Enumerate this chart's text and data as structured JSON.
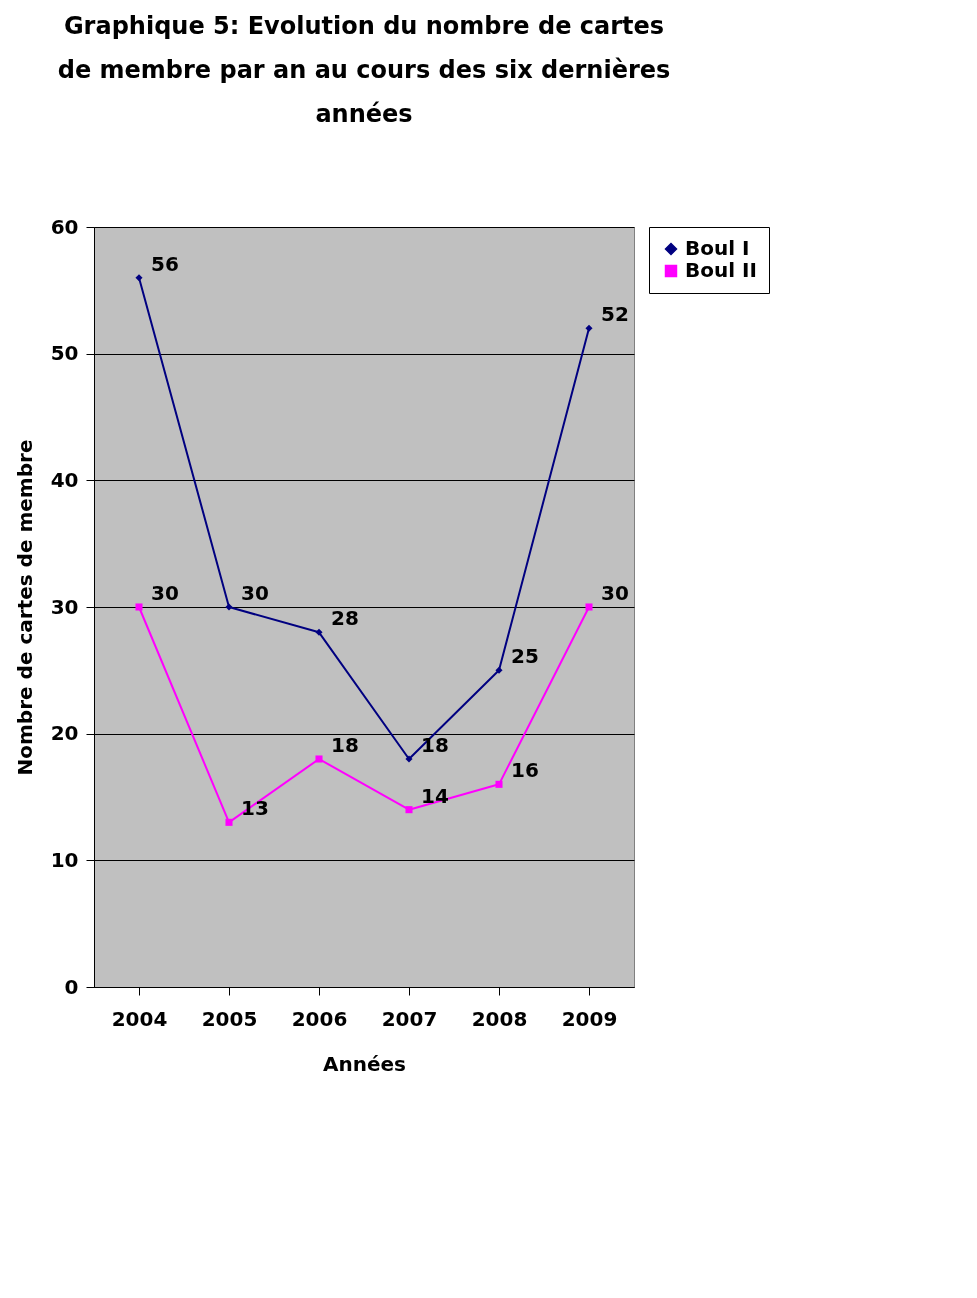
{
  "chart_data": {
    "type": "line",
    "title": "Graphique 5: Evolution du nombre de cartes de membre par an au cours des six dernières années",
    "xlabel": "Années",
    "ylabel": "Nombre de cartes de membre",
    "categories": [
      "2004",
      "2005",
      "2006",
      "2007",
      "2008",
      "2009"
    ],
    "series": [
      {
        "name": "Boul I",
        "color": "#000080",
        "marker": "diamond",
        "values": [
          56,
          30,
          28,
          18,
          25,
          52
        ]
      },
      {
        "name": "Boul II",
        "color": "#ff00ff",
        "marker": "square",
        "values": [
          30,
          13,
          18,
          14,
          16,
          30
        ]
      }
    ],
    "ylim": [
      0,
      60
    ],
    "yticks": [
      0,
      10,
      20,
      30,
      40,
      50,
      60
    ],
    "grid": "y",
    "legend": "right",
    "data_labels": true,
    "line_style": "solid"
  }
}
